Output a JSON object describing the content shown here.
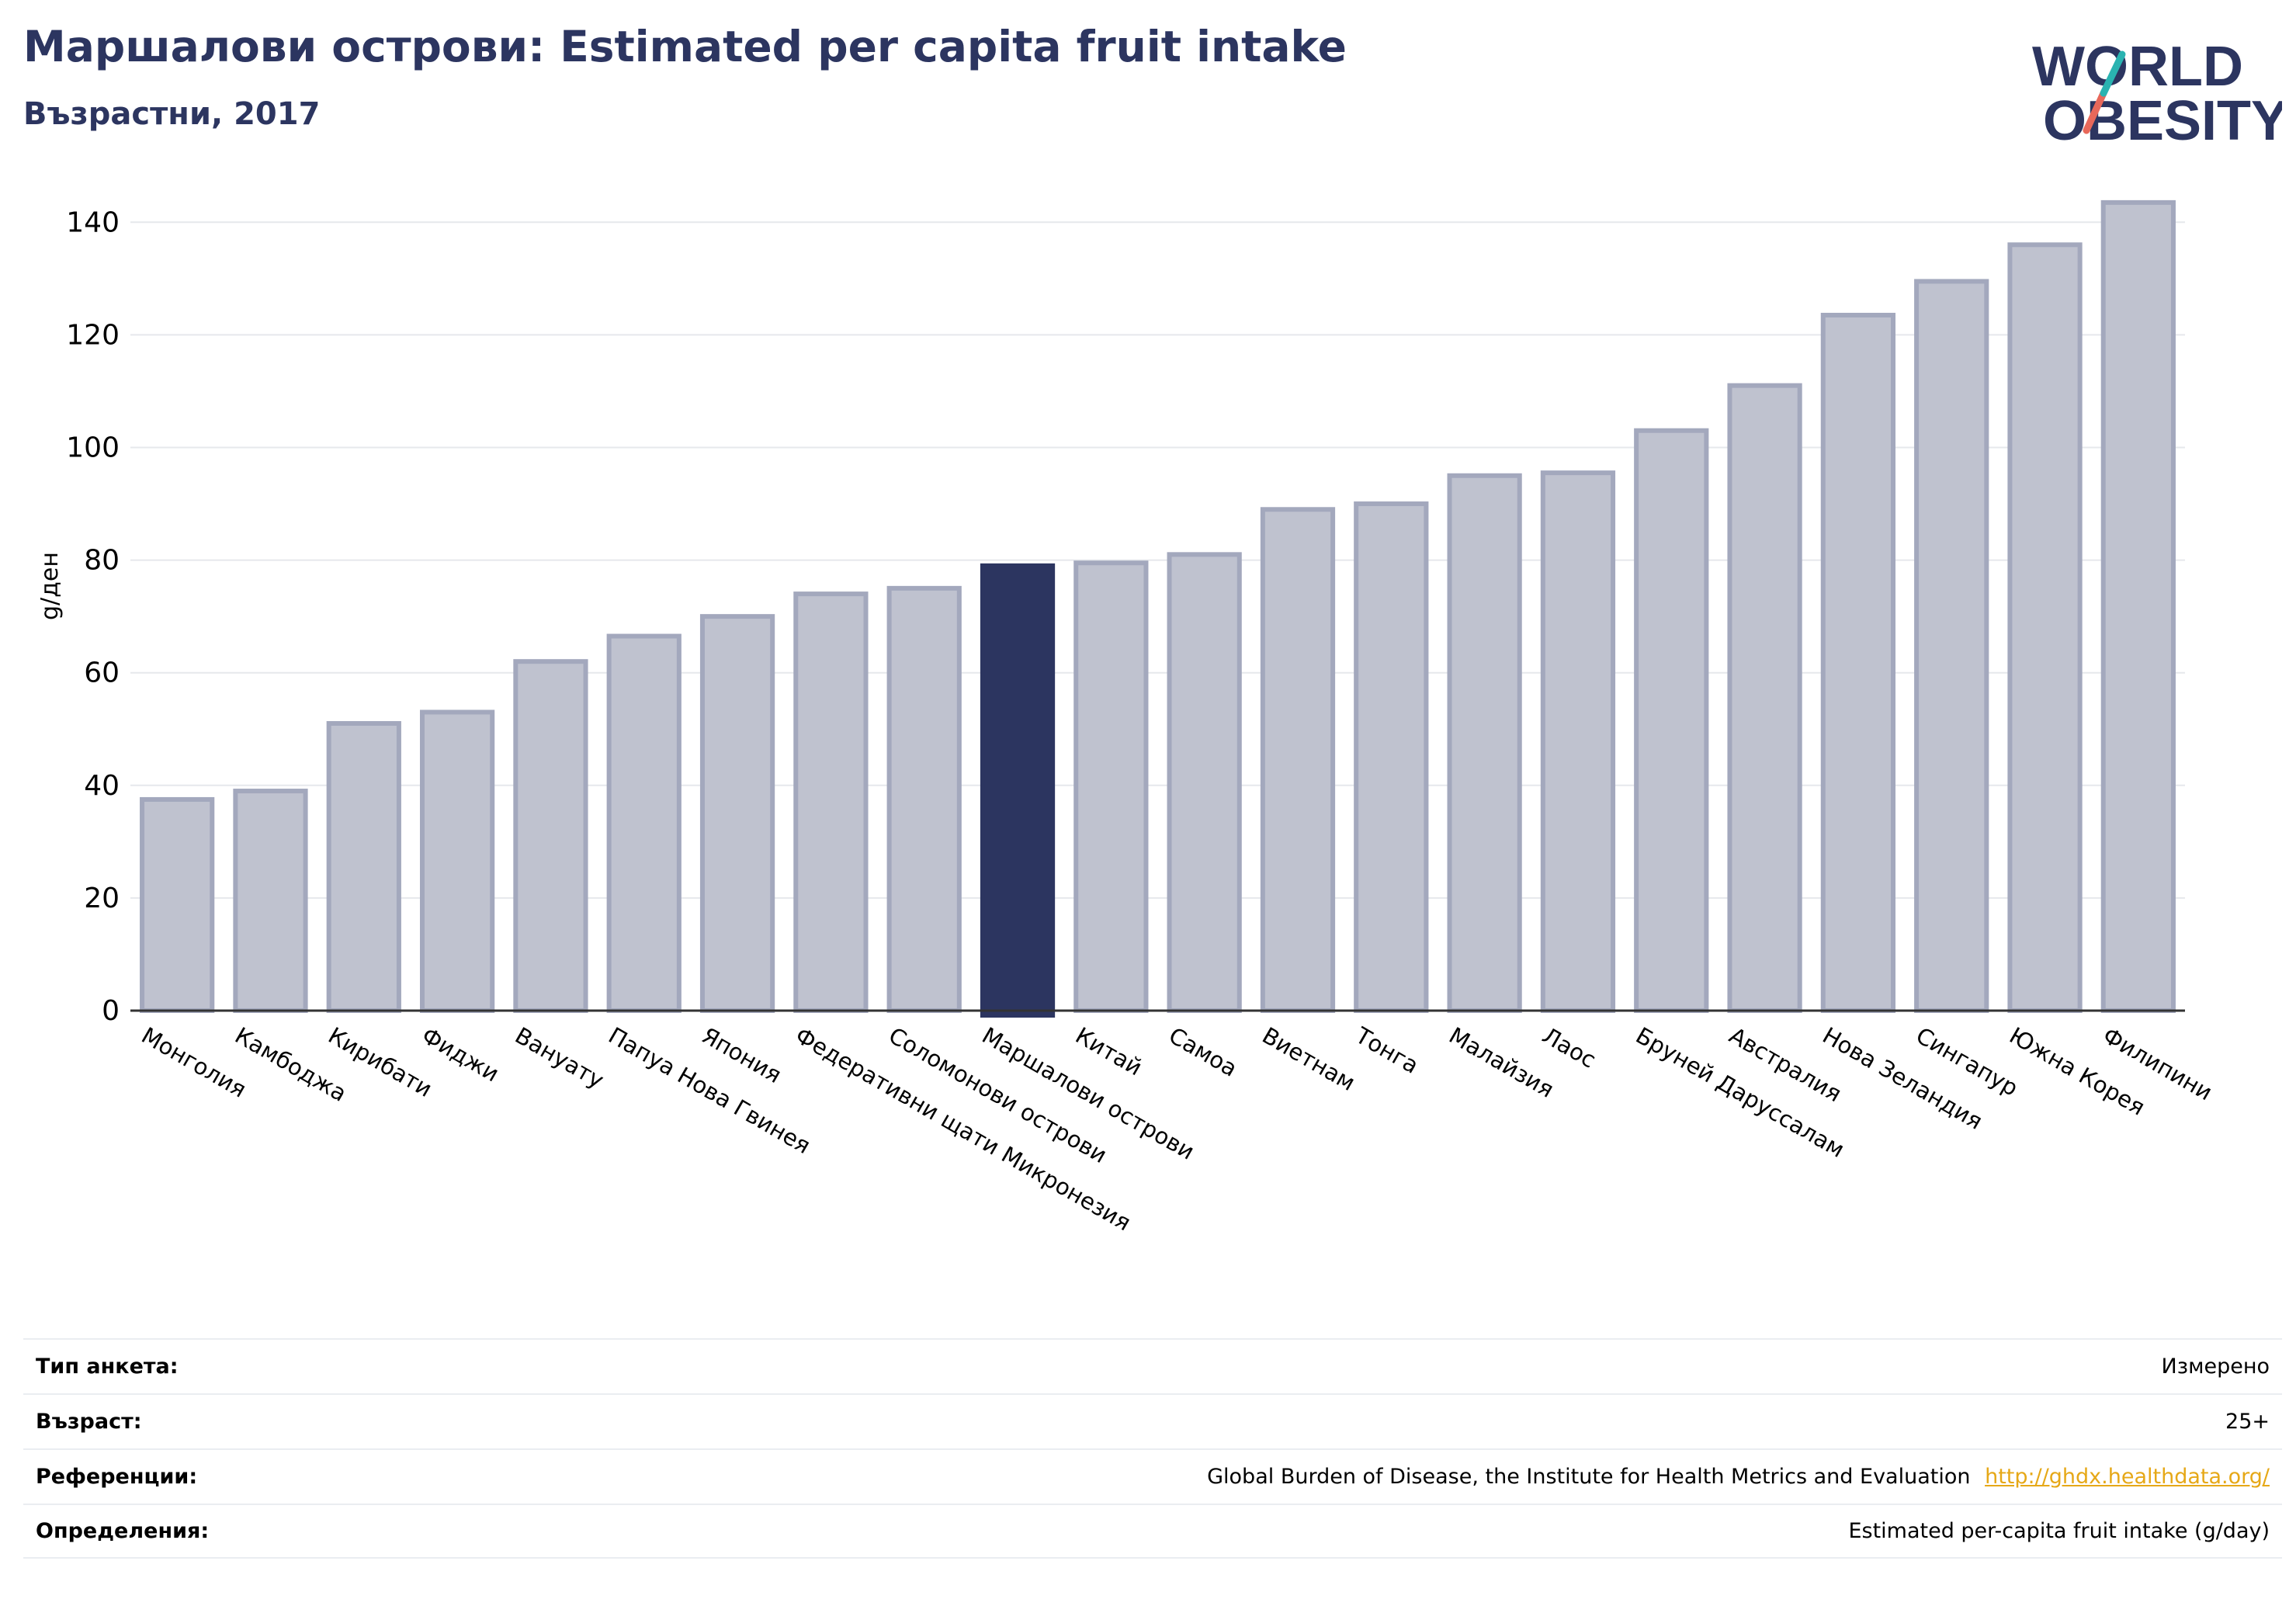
{
  "header": {
    "title": "Маршалови острови: Estimated per capita fruit intake",
    "subtitle": "Възрастни, 2017"
  },
  "logo": {
    "line1": "WORLD",
    "line2": "OBESITY"
  },
  "colors": {
    "bar": "#bfc2cf",
    "bar_stroke": "#a3a8bd",
    "highlight": "#2c3560",
    "text": "#2c3560",
    "logo_teal": "#2ab3b1",
    "logo_coral": "#e8685a"
  },
  "chart_data": {
    "type": "bar",
    "categories": [
      "Монголия",
      "Камбоджа",
      "Кирибати",
      "Фиджи",
      "Вануату",
      "Папуа Нова Гвинея",
      "Япония",
      "Федеративни щати Микронезия",
      "Соломонови острови",
      "Маршалови острови",
      "Китай",
      "Самоа",
      "Виетнам",
      "Тонга",
      "Малайзия",
      "Лаос",
      "Бруней Даруссалам",
      "Австралия",
      "Нова Зеландия",
      "Сингапур",
      "Южна Корея",
      "Филипини"
    ],
    "values": [
      37.5,
      39,
      51,
      53,
      62,
      66.5,
      70,
      74,
      75,
      79,
      79.5,
      81,
      89,
      90,
      95,
      95.5,
      103,
      111,
      123.5,
      129.5,
      136,
      143.5
    ],
    "highlight": "Маршалови острови",
    "xlabel": "",
    "ylabel": "g/ден",
    "ylim": [
      0,
      145
    ],
    "yticks": [
      0,
      20,
      40,
      60,
      80,
      100,
      120,
      140
    ],
    "grid": true,
    "legend": "none"
  },
  "meta": {
    "survey_label": "Тип анкета:",
    "survey_value": "Измерено",
    "age_label": "Възраст:",
    "age_value": "25+",
    "ref_label": "Референции:",
    "ref_value": "Global Burden of Disease, the Institute for Health Metrics and Evaluation",
    "ref_link": "http://ghdx.healthdata.org/",
    "def_label": "Определения:",
    "def_value": "Estimated per-capita fruit intake (g/day)"
  }
}
